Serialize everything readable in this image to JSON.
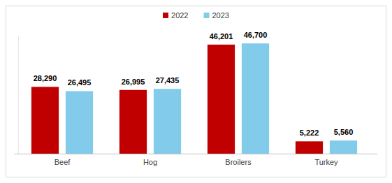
{
  "chart_data": {
    "type": "bar",
    "categories": [
      "Beef",
      "Hog",
      "Broilers",
      "Turkey"
    ],
    "series": [
      {
        "name": "2022",
        "color": "#c00000",
        "values": [
          28290,
          26995,
          46201,
          5222
        ],
        "value_labels": [
          "28,290",
          "26,995",
          "46,201",
          "5,222"
        ]
      },
      {
        "name": "2023",
        "color": "#83cbeb",
        "values": [
          26495,
          27435,
          46700,
          5560
        ],
        "value_labels": [
          "26,495",
          "27,435",
          "46,700",
          "5,560"
        ]
      }
    ],
    "ylim": [
      0,
      50000
    ],
    "tick_labels": "x",
    "legend": "top",
    "data_labels": true,
    "grid": false
  }
}
